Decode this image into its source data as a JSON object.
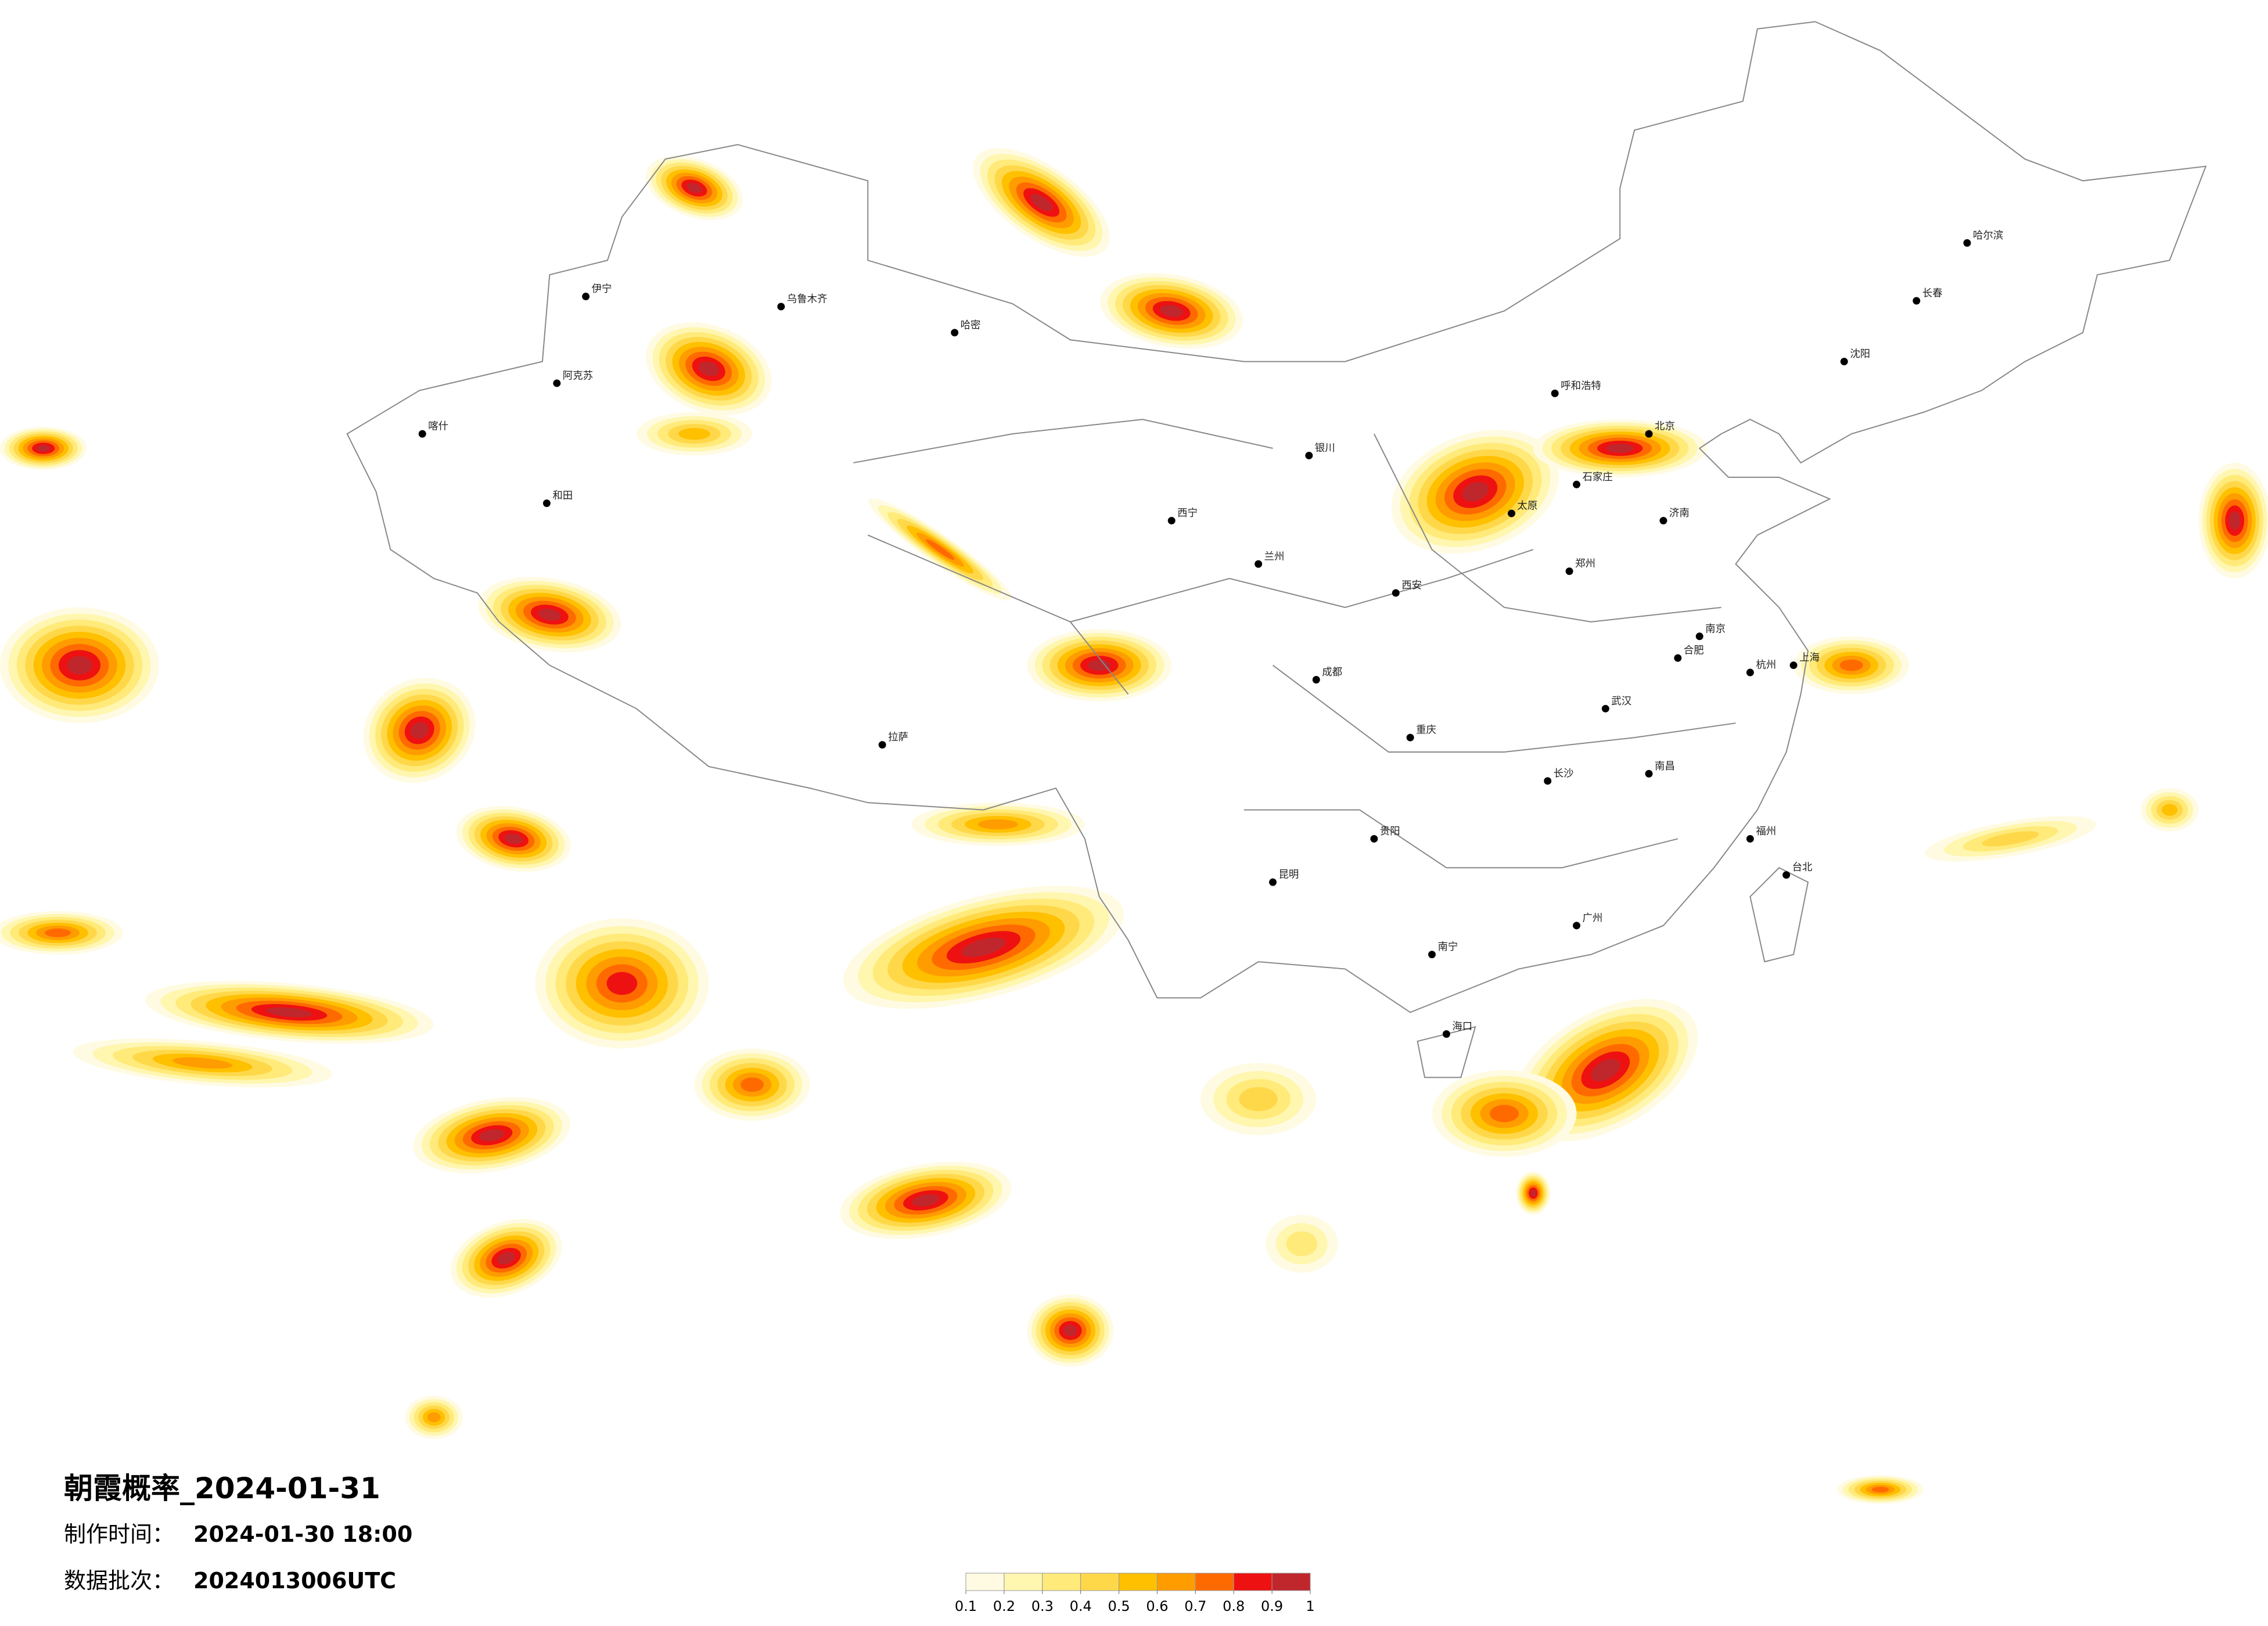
{
  "title": "朝霞概率_2024-01-31",
  "made_time": {
    "label": "制作时间：",
    "value": "2024-01-30 18:00"
  },
  "batch": {
    "label": "数据批次：",
    "value": "2024013006UTC"
  },
  "colorbar": {
    "ticks": [
      0.1,
      0.2,
      0.3,
      0.4,
      0.5,
      0.6,
      0.7,
      0.8,
      0.9,
      1
    ],
    "colors": [
      "#fffbe3",
      "#fff6b0",
      "#ffea7a",
      "#ffd84a",
      "#ffc000",
      "#ff9c00",
      "#ff6a00",
      "#ee1111",
      "#c0272d"
    ]
  },
  "cities": [
    "乌鲁木齐",
    "北京",
    "哈尔滨",
    "长春",
    "沈阳",
    "呼和浩特",
    "太原",
    "石家庄",
    "郑州",
    "西安",
    "兰州",
    "西宁",
    "拉萨",
    "成都",
    "重庆",
    "贵阳",
    "昆明",
    "南宁",
    "广州",
    "长沙",
    "武汉",
    "南昌",
    "福州",
    "杭州",
    "南京",
    "上海",
    "济南",
    "合肥",
    "海口",
    "台北",
    "银川",
    "和田",
    "喀什",
    "哈密",
    "伊宁",
    "阿克苏"
  ]
}
